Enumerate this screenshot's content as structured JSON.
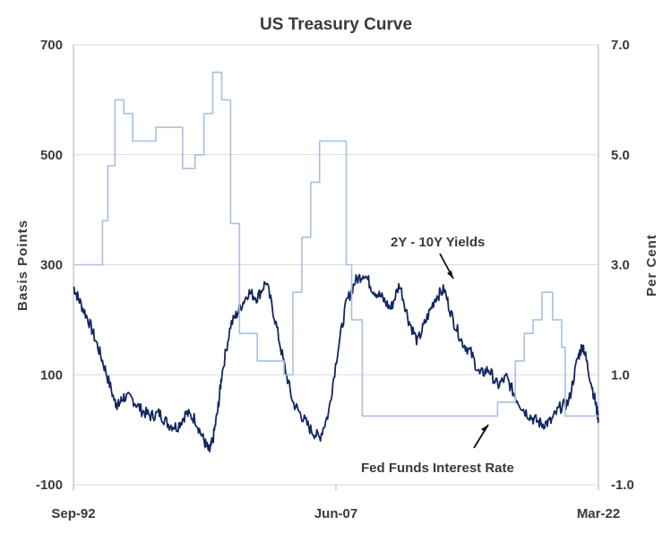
{
  "chart_data": {
    "type": "line",
    "title": "US Treasury Curve",
    "ylabel": "Basis Points",
    "y2label": "Per Cent",
    "ylim": [
      -100,
      700
    ],
    "y2lim": [
      -1.0,
      7.0
    ],
    "yticks": [
      "700",
      "500",
      "300",
      "100",
      "-100"
    ],
    "y2ticks": [
      "7.0",
      "5.0",
      "3.0",
      "1.0",
      "-1.0"
    ],
    "xticks": [
      "Sep-92",
      "Jun-07",
      "Mar-22"
    ],
    "xlim": [
      1992.67,
      2022.17
    ],
    "grid": "horizontal",
    "colors": {
      "spread": "#14285f",
      "fedfunds": "#a9bfe0",
      "axis": "#c8c8c8",
      "grid": "#d9d9d9"
    },
    "annotations": [
      {
        "text": "2Y - 10Y Yields",
        "x": 2005.3,
        "y": 3.0
      },
      {
        "text": "Fed Funds Interest Rate",
        "x": 2003.4,
        "y": -0.3
      }
    ],
    "series": [
      {
        "key": "spread",
        "axis": "left",
        "x": [
          1992.67,
          1993.0,
          1993.5,
          1994.0,
          1994.5,
          1995.0,
          1995.2,
          1995.5,
          1996.0,
          1996.5,
          1997.0,
          1997.5,
          1998.0,
          1998.5,
          1999.0,
          1999.5,
          2000.0,
          2000.3,
          2000.5,
          2000.8,
          2001.0,
          2001.5,
          2002.0,
          2002.5,
          2003.0,
          2003.5,
          2004.0,
          2004.5,
          2005.0,
          2005.5,
          2006.0,
          2006.5,
          2007.0,
          2007.5,
          2008.0,
          2008.5,
          2009.0,
          2009.5,
          2010.0,
          2010.5,
          2011.0,
          2011.5,
          2012.0,
          2012.5,
          2013.0,
          2013.5,
          2014.0,
          2014.5,
          2015.0,
          2015.5,
          2016.0,
          2016.5,
          2017.0,
          2017.5,
          2018.0,
          2018.5,
          2019.0,
          2019.5,
          2020.0,
          2020.5,
          2021.0,
          2021.3,
          2021.6,
          2022.0,
          2022.17
        ],
        "values": [
          260,
          235,
          200,
          155,
          105,
          50,
          45,
          60,
          55,
          35,
          25,
          30,
          10,
          5,
          30,
          20,
          -20,
          -40,
          -20,
          40,
          100,
          190,
          220,
          250,
          240,
          270,
          200,
          120,
          50,
          25,
          0,
          -15,
          30,
          140,
          230,
          270,
          285,
          255,
          240,
          220,
          265,
          200,
          160,
          200,
          240,
          255,
          200,
          160,
          140,
          100,
          110,
          80,
          95,
          60,
          35,
          20,
          10,
          15,
          40,
          50,
          130,
          155,
          110,
          50,
          20
        ]
      },
      {
        "key": "fedfunds",
        "axis": "right",
        "x": [
          1992.67,
          1994.0,
          1994.3,
          1994.6,
          1995.0,
          1995.5,
          1996.0,
          1997.0,
          1997.3,
          1998.0,
          1998.8,
          1999.5,
          2000.0,
          2000.5,
          2001.0,
          2001.5,
          2002.0,
          2003.0,
          2004.5,
          2005.0,
          2005.5,
          2006.0,
          2006.5,
          2007.5,
          2008.0,
          2008.3,
          2008.9,
          2015.9,
          2016.5,
          2017.5,
          2018.0,
          2018.5,
          2019.0,
          2019.6,
          2020.1,
          2020.3,
          2022.17
        ],
        "values": [
          3.0,
          3.0,
          3.8,
          4.8,
          6.0,
          5.75,
          5.25,
          5.25,
          5.5,
          5.5,
          4.75,
          5.0,
          5.75,
          6.5,
          6.0,
          3.75,
          1.75,
          1.25,
          1.0,
          2.5,
          3.5,
          4.5,
          5.25,
          5.25,
          3.0,
          2.0,
          0.25,
          0.25,
          0.5,
          1.25,
          1.75,
          2.0,
          2.5,
          2.0,
          1.5,
          0.25,
          0.25
        ]
      }
    ]
  }
}
